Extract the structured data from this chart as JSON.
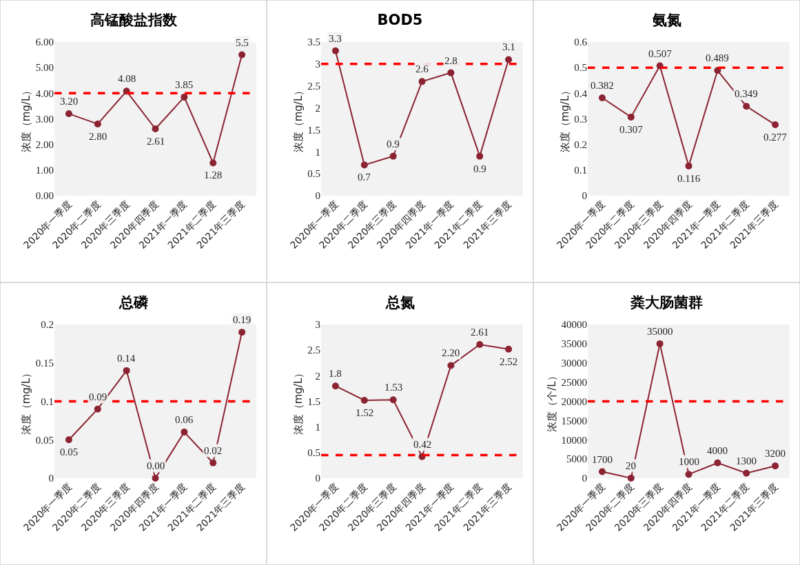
{
  "chart_data": [
    {
      "type": "line",
      "title": "高锰酸盐指数",
      "ylabel": "浓度（mg/L）",
      "categories": [
        "2020年一季度",
        "2020年二季度",
        "2020年三季度",
        "2020年四季度",
        "2021年一季度",
        "2021年二季度",
        "2021年三季度"
      ],
      "series": [
        {
          "color": "#8b2332",
          "values": [
            3.2,
            2.8,
            4.08,
            2.61,
            3.85,
            1.28,
            5.5
          ],
          "value_labels": [
            "3.20",
            "2.80",
            "4.08",
            "2.61",
            "3.85",
            "1.28",
            "5.5"
          ]
        }
      ],
      "ylim": [
        0,
        6
      ],
      "yticks": [
        {
          "value": 0,
          "label": "0.00"
        },
        {
          "value": 1,
          "label": "1.00"
        },
        {
          "value": 2,
          "label": "2.00"
        },
        {
          "value": 3,
          "label": "3.00"
        },
        {
          "value": 4,
          "label": "4.00"
        },
        {
          "value": 5,
          "label": "5.00"
        },
        {
          "value": 6,
          "label": "6.00"
        }
      ],
      "ref_lines": [
        {
          "axis": "y",
          "value": 4,
          "color": "#ff0000",
          "line_style": "dashed"
        }
      ],
      "marker": "circle",
      "line_style": "solid",
      "grid": false
    },
    {
      "type": "line",
      "title": "BOD5",
      "ylabel": "浓度（mg/L）",
      "categories": [
        "2020年一季度",
        "2020年二季度",
        "2020年三季度",
        "2020年四季度",
        "2021年一季度",
        "2021年二季度",
        "2021年三季度"
      ],
      "series": [
        {
          "color": "#8b2332",
          "values": [
            3.3,
            0.7,
            0.9,
            2.6,
            2.8,
            0.9,
            3.1
          ]
        }
      ],
      "data_labels": true,
      "ylim": [
        0,
        3.5
      ],
      "yticks": [
        0,
        0.5,
        1,
        1.5,
        2,
        2.5,
        3,
        3.5
      ],
      "ref_lines": [
        {
          "axis": "y",
          "value": 3,
          "color": "#ff0000",
          "line_style": "dashed"
        }
      ],
      "marker": "circle",
      "line_style": "solid",
      "grid": false
    },
    {
      "type": "line",
      "title": "氨氮",
      "ylabel": "浓度（mg/L）",
      "categories": [
        "2020年一季度",
        "2020年二季度",
        "2020年三季度",
        "2020年四季度",
        "2021年一季度",
        "2021年二季度",
        "2021年三季度"
      ],
      "series": [
        {
          "color": "#8b2332",
          "values": [
            0.382,
            0.307,
            0.507,
            0.116,
            0.489,
            0.349,
            0.277
          ]
        }
      ],
      "data_labels": true,
      "ylim": [
        0,
        0.6
      ],
      "yticks": [
        0,
        0.1,
        0.2,
        0.3,
        0.4,
        0.5,
        0.6
      ],
      "ref_lines": [
        {
          "axis": "y",
          "value": 0.5,
          "color": "#ff0000",
          "line_style": "dashed"
        }
      ],
      "marker": "circle",
      "line_style": "solid",
      "grid": false
    },
    {
      "type": "line",
      "title": "总磷",
      "ylabel": "浓度（mg/L）",
      "categories": [
        "2020年一季度",
        "2020年二季度",
        "2020年三季度",
        "2020年四季度",
        "2021年一季度",
        "2021年二季度",
        "2021年三季度"
      ],
      "series": [
        {
          "color": "#8b2332",
          "values": [
            0.05,
            0.09,
            0.14,
            0.0,
            0.06,
            0.02,
            0.19
          ],
          "value_labels": [
            "0.05",
            "0.09",
            "0.14",
            "0.00",
            "0.06",
            "0.02",
            "0.19"
          ]
        }
      ],
      "ylim": [
        0,
        0.2
      ],
      "yticks": [
        0,
        0.05,
        0.1,
        0.15,
        0.2
      ],
      "ref_lines": [
        {
          "axis": "y",
          "value": 0.1,
          "color": "#ff0000",
          "line_style": "dashed"
        }
      ],
      "marker": "circle",
      "line_style": "solid",
      "grid": false
    },
    {
      "type": "line",
      "title": "总氮",
      "ylabel": "浓度（mg/L）",
      "categories": [
        "2020年一季度",
        "2020年二季度",
        "2020年三季度",
        "2020年四季度",
        "2021年一季度",
        "2021年二季度",
        "2021年三季度"
      ],
      "series": [
        {
          "color": "#8b2332",
          "values": [
            1.8,
            1.52,
            1.53,
            0.42,
            2.2,
            2.61,
            2.52
          ],
          "value_labels": [
            "1.8",
            "1.52",
            "1.53",
            "0.42",
            "2.20",
            "2.61",
            "2.52"
          ]
        }
      ],
      "ylim": [
        0,
        3
      ],
      "yticks": [
        0,
        0.5,
        1,
        1.5,
        2,
        2.5,
        3
      ],
      "ref_lines": [
        {
          "axis": "y",
          "value": 0.45,
          "color": "#ff0000",
          "line_style": "dashed"
        }
      ],
      "marker": "circle",
      "line_style": "solid",
      "grid": false
    },
    {
      "type": "line",
      "title": "粪大肠菌群",
      "ylabel": "浓度（个/L）",
      "categories": [
        "2020年一季度",
        "2020年二季度",
        "2020年三季度",
        "2020年四季度",
        "2021年一季度",
        "2021年二季度",
        "2021年三季度"
      ],
      "series": [
        {
          "color": "#8b2332",
          "values": [
            1700,
            20,
            35000,
            1000,
            4000,
            1300,
            3200
          ]
        }
      ],
      "data_labels": true,
      "ylim": [
        0,
        40000
      ],
      "yticks": [
        0,
        5000,
        10000,
        15000,
        20000,
        25000,
        30000,
        35000,
        40000
      ],
      "ref_lines": [
        {
          "axis": "y",
          "value": 20000,
          "color": "#ff0000",
          "line_style": "dashed"
        }
      ],
      "marker": "circle",
      "line_style": "solid",
      "grid": false
    }
  ]
}
